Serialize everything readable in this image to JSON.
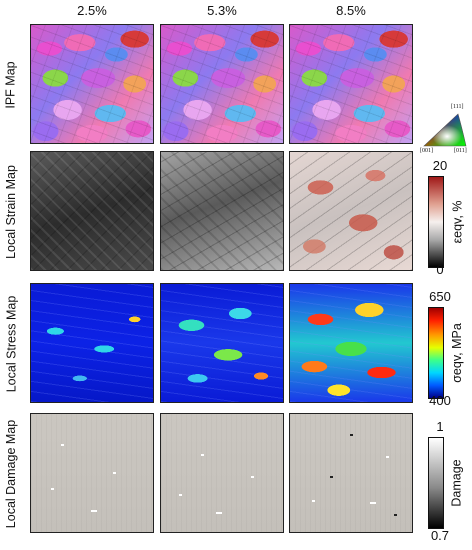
{
  "columns": [
    "2.5%",
    "5.3%",
    "8.5%"
  ],
  "rows": [
    {
      "label": "IPF Map"
    },
    {
      "label": "Local Strain Map"
    },
    {
      "label": "Local Stress Map"
    },
    {
      "label": "Local Damage Map"
    }
  ],
  "ipf_legend": {
    "top": "[111]",
    "left": "[001]",
    "right": "[011]"
  },
  "colorbars": {
    "strain": {
      "max": "20",
      "min": "0",
      "title": "εeqv, %"
    },
    "stress": {
      "max": "650",
      "min": "400",
      "title": "σeqv, MPa"
    },
    "damage": {
      "max": "1",
      "min": "0.7",
      "title": "Damage"
    }
  },
  "colors": {
    "stress_high": "#a00000",
    "stress_low": "#00008a",
    "strain_high": "#a01818"
  }
}
